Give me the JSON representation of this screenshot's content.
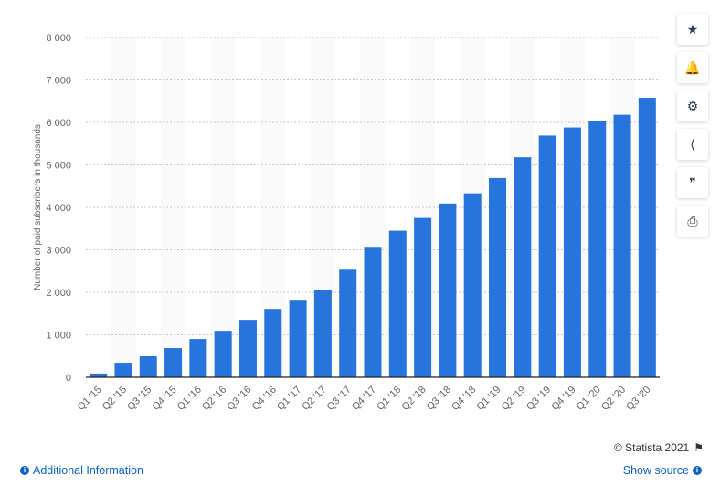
{
  "chart_data": {
    "type": "bar",
    "ylabel": "Number of paid subscribers in thousands",
    "ylim": [
      0,
      8000
    ],
    "yticks": [
      "0",
      "1 000",
      "2 000",
      "3 000",
      "4 000",
      "5 000",
      "6 000",
      "7 000",
      "8 000"
    ],
    "ytick_values": [
      0,
      1000,
      2000,
      3000,
      4000,
      5000,
      6000,
      7000,
      8000
    ],
    "grid": true,
    "categories": [
      "Q1 '15",
      "Q2 '15",
      "Q3 '15",
      "Q4 '15",
      "Q1 '16",
      "Q2 '16",
      "Q3 '16",
      "Q4 '16",
      "Q1 '17",
      "Q2 '17",
      "Q3 '17",
      "Q4 '17",
      "Q1 '18",
      "Q2 '18",
      "Q3 '18",
      "Q4 '18",
      "Q1 '19",
      "Q2 '19",
      "Q3 '19",
      "Q4 '19",
      "Q1 '20",
      "Q2 '20",
      "Q3 '20"
    ],
    "values": [
      88,
      343,
      494,
      687,
      901,
      1094,
      1352,
      1609,
      1824,
      2060,
      2532,
      3070,
      3450,
      3750,
      4090,
      4330,
      4690,
      5180,
      5690,
      5880,
      6030,
      6180,
      6580
    ],
    "bar_color": "#2775dc"
  },
  "toolbar": {
    "icons": [
      "star-icon",
      "bell-icon",
      "gear-icon",
      "share-icon",
      "quote-icon",
      "print-icon"
    ],
    "glyphs": [
      "★",
      "🔔",
      "⚙",
      "⟨",
      "❞",
      "⎙"
    ]
  },
  "footer": {
    "copyright": "© Statista 2021",
    "additional_info": "Additional Information",
    "show_source": "Show source"
  }
}
